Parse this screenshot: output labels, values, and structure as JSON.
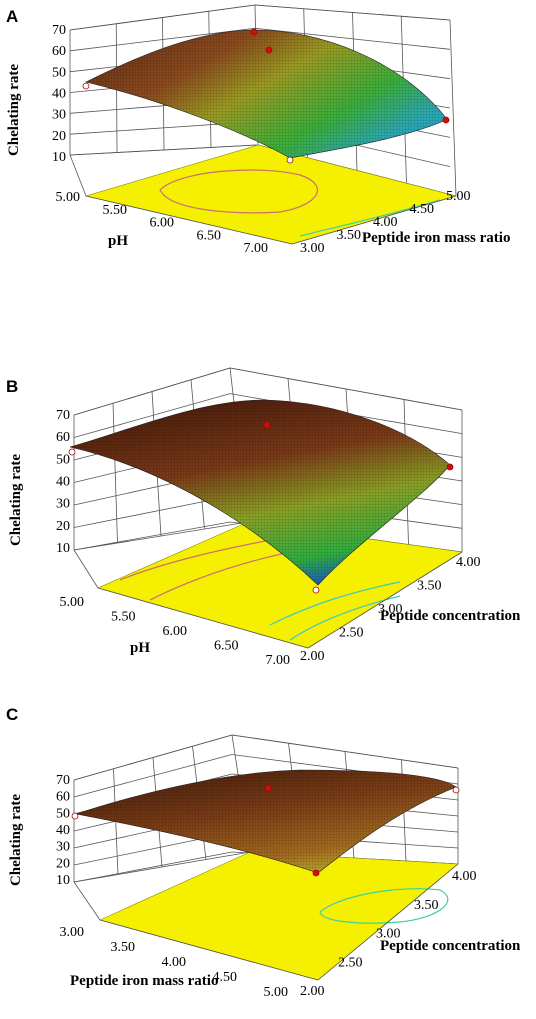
{
  "chart_data": [
    {
      "type": "surface3d",
      "panel": "A",
      "zlabel": "Chelating rate",
      "xlabel": "pH",
      "ylabel": "Peptide iron mass ratio",
      "zticks": [
        "70",
        "60",
        "50",
        "40",
        "30",
        "20",
        "10"
      ],
      "xticks": [
        "5.00",
        "5.50",
        "6.00",
        "6.50",
        "7.00"
      ],
      "yticks": [
        "3.00",
        "3.50",
        "4.00",
        "4.50",
        "5.00"
      ],
      "corners": {
        "x5_y3": 46,
        "x7_y3": 29,
        "x5_y5": 52,
        "x7_y5": 15
      },
      "peak": 63,
      "points": [
        {
          "name": "design-point",
          "z": 66
        },
        {
          "name": "design-point",
          "z": 60
        },
        {
          "name": "design-point",
          "z": 42
        },
        {
          "name": "design-point",
          "z": 28
        },
        {
          "name": "design-point",
          "z": 0
        }
      ]
    },
    {
      "type": "surface3d",
      "panel": "B",
      "zlabel": "Chelating rate",
      "xlabel": "pH",
      "ylabel": "Peptide concentration",
      "zticks": [
        "70",
        "60",
        "50",
        "40",
        "30",
        "20",
        "10"
      ],
      "xticks": [
        "5.00",
        "5.50",
        "6.00",
        "6.50",
        "7.00"
      ],
      "yticks": [
        "2.00",
        "2.50",
        "3.00",
        "3.50",
        "4.00"
      ],
      "corners": {
        "x5_y2": 55,
        "x7_y2": 2,
        "x5_y4": 52,
        "x7_y4": 44
      },
      "peak": 65,
      "points": [
        {
          "name": "design-point",
          "z": 64
        },
        {
          "name": "design-point",
          "z": 52
        },
        {
          "name": "design-point",
          "z": 44
        },
        {
          "name": "design-point",
          "z": 0
        }
      ]
    },
    {
      "type": "surface3d",
      "panel": "C",
      "zlabel": "Chelating rate",
      "xlabel": "Peptide iron mass ratio",
      "ylabel": "Peptide concentration",
      "zticks": [
        "70",
        "60",
        "50",
        "40",
        "30",
        "20",
        "10"
      ],
      "xticks": [
        "3.00",
        "3.50",
        "4.00",
        "4.50",
        "5.00"
      ],
      "yticks": [
        "2.00",
        "2.50",
        "3.00",
        "3.50",
        "4.00"
      ],
      "corners": {
        "x3_y2": 54,
        "x5_y2": 39,
        "x3_y4": 62,
        "x5_y4": 60
      },
      "peak": 66,
      "points": [
        {
          "name": "design-point",
          "z": 65
        },
        {
          "name": "design-point",
          "z": 60
        },
        {
          "name": "design-point",
          "z": 58
        },
        {
          "name": "design-point",
          "z": 34
        }
      ]
    }
  ]
}
